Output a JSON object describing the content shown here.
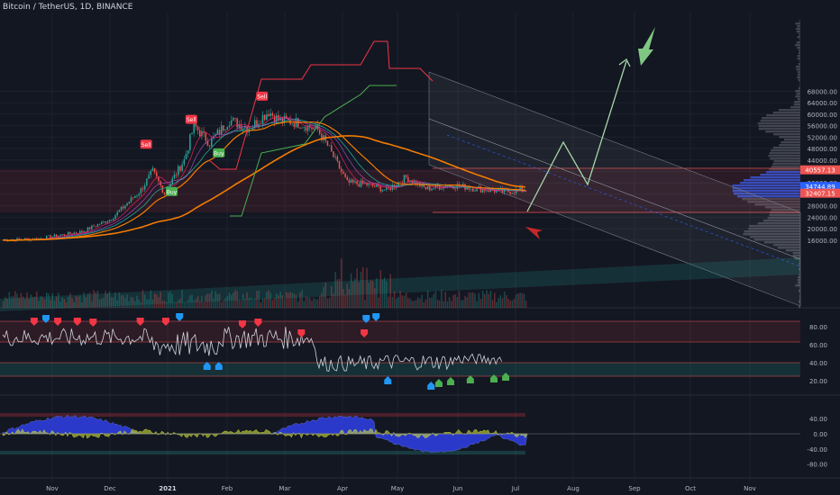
{
  "header": {
    "symbol": "Bitcoin / TetherUS, 1D, BINANCE"
  },
  "colors": {
    "bg": "#131722",
    "grid": "#1e222d",
    "up": "#26a69a",
    "down": "#ef5350",
    "ema_orange": "#f57c00",
    "sell": "#f23645",
    "buy": "#4caf50",
    "projection": "#a5d6a7",
    "arrow_green": "#81c784",
    "arrow_red": "#c62828",
    "rsi_line": "#d1d4dc",
    "vol_profile": "#2962ff"
  },
  "price_axis": {
    "ticks": [
      "68000.00",
      "64000.00",
      "60000.00",
      "56000.00",
      "52000.00",
      "48000.00",
      "44000.00",
      "40000.00",
      "36000.00",
      "32000.00",
      "28000.00",
      "24000.00",
      "20000.00",
      "16000.00"
    ],
    "labels": [
      {
        "text": "40557.13",
        "value": 40557,
        "color": "#ef5350"
      },
      {
        "text": "34744.89",
        "value": 34745,
        "color": "#2962ff"
      },
      {
        "text": "32407.15",
        "value": 32407,
        "color": "#ef5350"
      }
    ]
  },
  "rsi_axis": {
    "ticks": [
      "80.00",
      "60.00",
      "40.00",
      "20.00"
    ]
  },
  "osc_axis": {
    "ticks": [
      "40.00",
      "0.00",
      "-40.00",
      "-80.00"
    ]
  },
  "time_axis": {
    "labels": [
      "Nov",
      "Dec",
      "2021",
      "Feb",
      "Mar",
      "Apr",
      "May",
      "Jun",
      "Jul",
      "Aug",
      "Sep",
      "Oct",
      "Nov"
    ]
  },
  "signals": [
    {
      "label": "Sell",
      "type": "sell",
      "price": 49500,
      "bar_index": 73
    },
    {
      "label": "Sell",
      "type": "sell",
      "price": 58200,
      "bar_index": 96
    },
    {
      "label": "Sell",
      "type": "sell",
      "price": 66300,
      "bar_index": 132
    },
    {
      "label": "Buy",
      "type": "buy",
      "price": 33000,
      "bar_index": 86
    },
    {
      "label": "Buy",
      "type": "buy",
      "price": 46500,
      "bar_index": 110
    }
  ]
}
